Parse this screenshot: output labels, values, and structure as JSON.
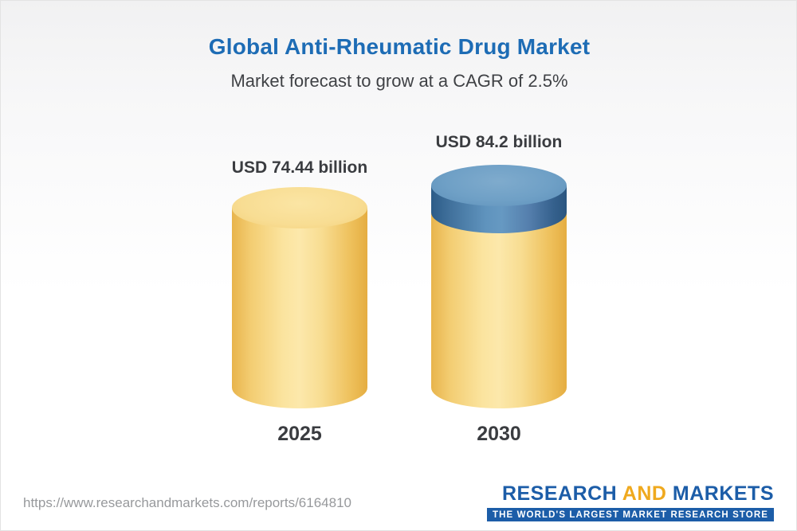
{
  "header": {
    "title": "Global Anti-Rheumatic Drug Market",
    "subtitle": "Market forecast to grow at a CAGR of 2.5%"
  },
  "chart_data": {
    "type": "bar",
    "variant": "3d-cylinder",
    "categories": [
      "2025",
      "2030"
    ],
    "values": [
      74.44,
      84.2
    ],
    "value_labels": [
      "USD 74.44 billion",
      "USD 84.2 billion"
    ],
    "unit": "USD billion",
    "cagr": "2.5%",
    "title": "Global Anti-Rheumatic Drug Market",
    "subtitle": "Market forecast to grow at a CAGR of 2.5%",
    "legend_position": "none",
    "grid": false,
    "notes": "2030 bar shows growth increment over 2025 as a blue top segment on a gold cylinder",
    "colors": {
      "bar_gold": "#f6d988",
      "bar_gold_edge": "#e8b44c",
      "growth_segment_blue": "#4f84b0",
      "title_blue": "#1d6cb5",
      "label_text": "#3a3c40"
    }
  },
  "footer": {
    "url": "https://www.researchandmarkets.com/reports/6164810",
    "logo": {
      "part1": "RESEARCH",
      "part2": "AND",
      "part3": "MARKETS",
      "tagline": "THE WORLD'S LARGEST MARKET RESEARCH STORE"
    }
  }
}
